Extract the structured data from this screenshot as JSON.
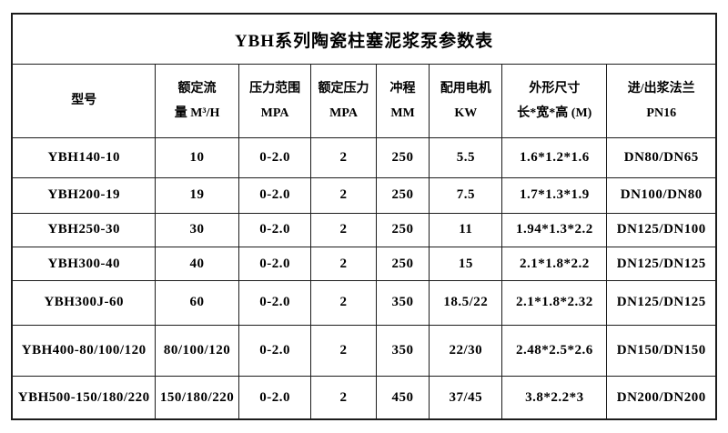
{
  "page": {
    "background_color": "#ffffff",
    "border_color": "#1c1c1c",
    "text_color": "#000000"
  },
  "table": {
    "title": "YBH系列陶瓷柱塞泥浆泵参数表",
    "columns": [
      {
        "id": "model",
        "lines": [
          "型号"
        ]
      },
      {
        "id": "rated-flow",
        "lines": [
          "额定流",
          "量 M³/H"
        ]
      },
      {
        "id": "pressure-range",
        "lines": [
          "压力范围",
          "MPA"
        ]
      },
      {
        "id": "rated-pressure",
        "lines": [
          "额定压力",
          "MPA"
        ]
      },
      {
        "id": "stroke",
        "lines": [
          "冲程",
          "MM"
        ]
      },
      {
        "id": "motor-power",
        "lines": [
          "配用电机",
          "KW"
        ]
      },
      {
        "id": "dimensions",
        "lines": [
          "外形尺寸",
          "长*宽*高 (M)"
        ]
      },
      {
        "id": "flange",
        "lines": [
          "进/出浆法兰",
          "PN16"
        ]
      }
    ],
    "rows": [
      [
        "YBH140-10",
        "10",
        "0-2.0",
        "2",
        "250",
        "5.5",
        "1.6*1.2*1.6",
        "DN80/DN65"
      ],
      [
        "YBH200-19",
        "19",
        "0-2.0",
        "2",
        "250",
        "7.5",
        "1.7*1.3*1.9",
        "DN100/DN80"
      ],
      [
        "YBH250-30",
        "30",
        "0-2.0",
        "2",
        "250",
        "11",
        "1.94*1.3*2.2",
        "DN125/DN100"
      ],
      [
        "YBH300-40",
        "40",
        "0-2.0",
        "2",
        "250",
        "15",
        "2.1*1.8*2.2",
        "DN125/DN125"
      ],
      [
        "YBH300J-60",
        "60",
        "0-2.0",
        "2",
        "350",
        "18.5/22",
        "2.1*1.8*2.32",
        "DN125/DN125"
      ],
      [
        "YBH400-80/100/120",
        "80/100/120",
        "0-2.0",
        "2",
        "350",
        "22/30",
        "2.48*2.5*2.6",
        "DN150/DN150"
      ],
      [
        "YBH500-150/180/220",
        "150/180/220",
        "0-2.0",
        "2",
        "450",
        "37/45",
        "3.8*2.2*3",
        "DN200/DN200"
      ]
    ],
    "column_widths_pct": [
      20.4,
      11.8,
      10.3,
      9.2,
      7.6,
      10.3,
      14.9,
      15.5
    ]
  }
}
